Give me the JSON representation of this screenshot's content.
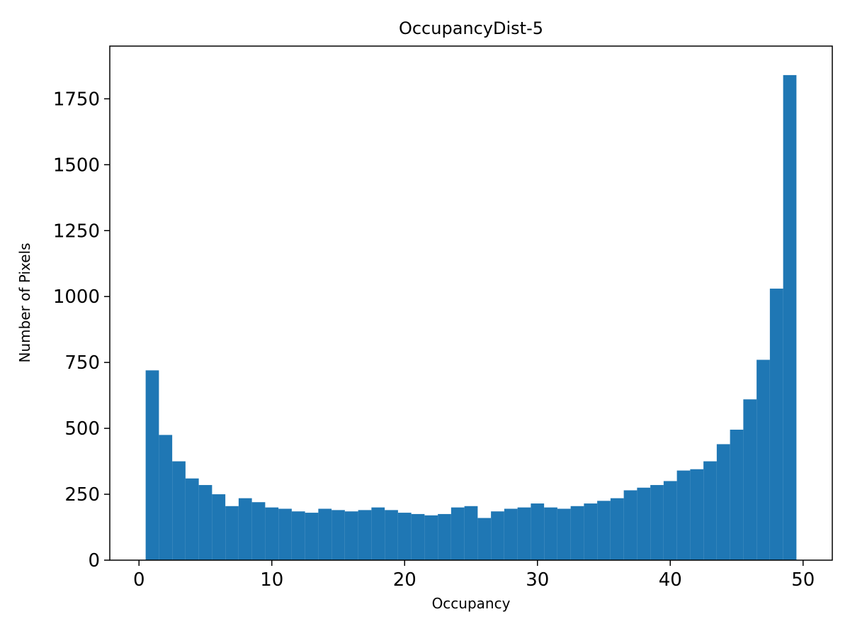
{
  "chart_data": {
    "type": "bar",
    "title": "OccupancyDist-5",
    "xlabel": "Occupancy",
    "ylabel": "Number of Pixels",
    "bar_color": "#1f77b4",
    "bin_start": 0.5,
    "bin_width": 1,
    "values": [
      720,
      475,
      375,
      310,
      285,
      250,
      205,
      235,
      220,
      200,
      195,
      185,
      180,
      195,
      190,
      185,
      190,
      200,
      190,
      180,
      175,
      170,
      175,
      200,
      205,
      160,
      185,
      195,
      200,
      215,
      200,
      195,
      205,
      215,
      225,
      235,
      265,
      275,
      285,
      300,
      340,
      345,
      375,
      440,
      495,
      610,
      760,
      1030,
      1840
    ],
    "xticks": [
      0,
      10,
      20,
      30,
      40,
      50
    ],
    "yticks": [
      0,
      250,
      500,
      750,
      1000,
      1250,
      1500,
      1750
    ],
    "xlim": [
      -2.2,
      52.2
    ],
    "ylim": [
      0,
      1950
    ],
    "grid": false,
    "legend": null
  }
}
